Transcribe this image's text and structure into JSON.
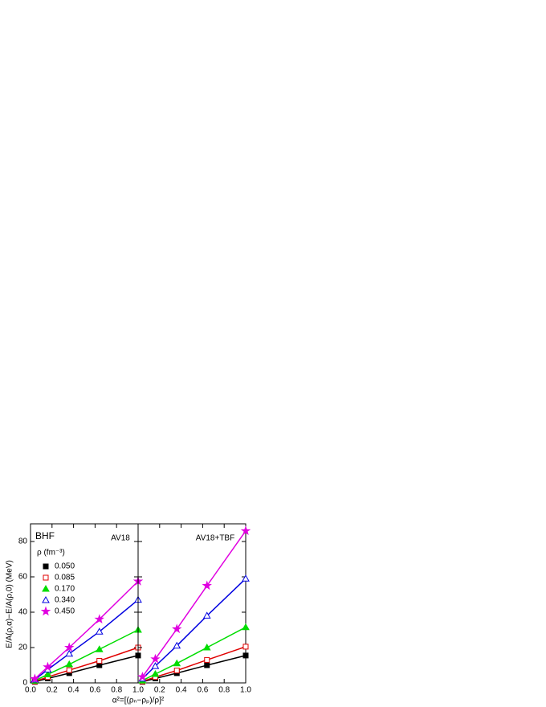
{
  "chart_data": [
    {
      "type": "line",
      "label": "AV18",
      "method_label": "BHF",
      "y_label": "E/A(ρ,α)−E/A(ρ,0) (MeV)",
      "x_label": "α²=[(ρₙ−ρₚ)/ρ]²",
      "legend_title": "ρ (fm⁻³)",
      "legend": "upper-left",
      "x": [
        0.04,
        0.16,
        0.36,
        0.64,
        1.0
      ],
      "xlim": [
        0,
        1.0
      ],
      "xticks": [
        {
          "value": 0,
          "label": "0.0"
        },
        {
          "value": 0.2,
          "label": "0.2"
        },
        {
          "value": 0.4,
          "label": "0.4"
        },
        {
          "value": 0.6,
          "label": "0.6"
        },
        {
          "value": 0.8,
          "label": "0.8"
        },
        {
          "value": 1,
          "label": "1.0"
        }
      ],
      "ylim": [
        0,
        90
      ],
      "yticks": [
        0,
        20,
        40,
        60,
        80
      ],
      "series": [
        {
          "name": "0.050",
          "color": "#000000",
          "marker": "square",
          "values": [
            0.6,
            2.5,
            5.5,
            10,
            15.5
          ]
        },
        {
          "name": "0.085",
          "color": "#e00000",
          "marker": "open-square",
          "values": [
            0.8,
            3.3,
            7.2,
            12.5,
            20
          ]
        },
        {
          "name": "0.170",
          "color": "#00dd00",
          "marker": "triangle",
          "values": [
            1.2,
            4.8,
            10.5,
            19,
            30
          ]
        },
        {
          "name": "0.340",
          "color": "#0000e0",
          "marker": "open-triangle",
          "values": [
            1.9,
            7.5,
            16.5,
            29,
            47
          ]
        },
        {
          "name": "0.450",
          "color": "#e000e0",
          "marker": "star",
          "values": [
            2.3,
            9,
            20,
            36,
            57.5
          ]
        }
      ]
    },
    {
      "type": "line",
      "label": "AV18+TBF",
      "x": [
        0.04,
        0.16,
        0.36,
        0.64,
        1.0
      ],
      "xlim": [
        0,
        1.0
      ],
      "xticks": [
        {
          "value": 0.2,
          "label": "0.2"
        },
        {
          "value": 0.4,
          "label": "0.4"
        },
        {
          "value": 0.6,
          "label": "0.6"
        },
        {
          "value": 0.8,
          "label": "0.8"
        },
        {
          "value": 1,
          "label": "1.0"
        }
      ],
      "ylim": [
        0,
        90
      ],
      "yticks": [
        0,
        20,
        40,
        60,
        80
      ],
      "series": [
        {
          "color": "#000000",
          "marker": "square",
          "values": [
            0.6,
            2.5,
            5.5,
            10,
            15.5
          ]
        },
        {
          "color": "#e00000",
          "marker": "open-square",
          "values": [
            0.8,
            3.3,
            7,
            13,
            20.5
          ]
        },
        {
          "color": "#00dd00",
          "marker": "triangle",
          "values": [
            1.3,
            5,
            11,
            20,
            31.5
          ]
        },
        {
          "color": "#0000e0",
          "marker": "open-triangle",
          "values": [
            2.4,
            9.5,
            21,
            38,
            59
          ]
        },
        {
          "color": "#e000e0",
          "marker": "star",
          "values": [
            3.4,
            13.5,
            30.5,
            55,
            86
          ]
        }
      ]
    }
  ]
}
